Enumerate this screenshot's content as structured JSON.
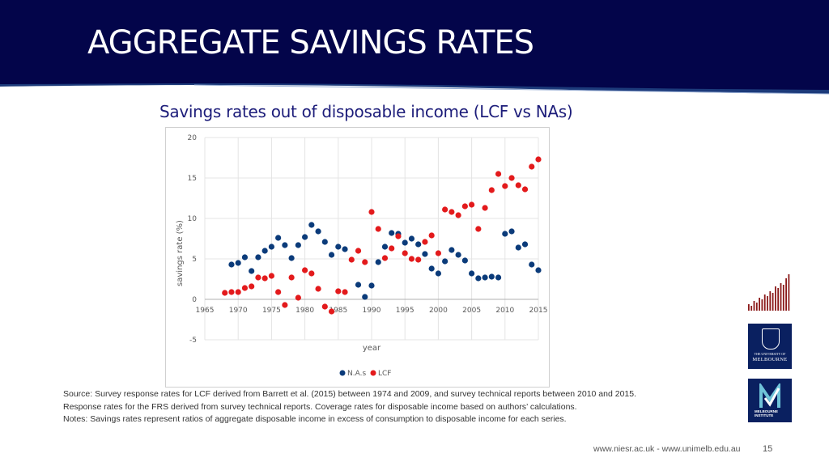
{
  "header": {
    "title": "AGGREGATE SAVINGS RATES"
  },
  "subtitle": "Savings rates out of disposable income (LCF vs NAs)",
  "chart_data": {
    "type": "scatter",
    "title": "",
    "xlabel": "year",
    "ylabel": "savings rate (%)",
    "xlim": [
      1965,
      2015
    ],
    "ylim": [
      -5,
      20
    ],
    "x_ticks": [
      1965,
      1970,
      1975,
      1980,
      1985,
      1990,
      1995,
      2000,
      2005,
      2010,
      2015
    ],
    "y_ticks": [
      -5,
      0,
      5,
      10,
      15,
      20
    ],
    "grid": true,
    "legend": "bottom",
    "series": [
      {
        "name": "N.A.s",
        "color": "#0b3b7a",
        "points": [
          [
            1969,
            4.3
          ],
          [
            1970,
            4.5
          ],
          [
            1971,
            5.2
          ],
          [
            1972,
            3.5
          ],
          [
            1973,
            5.2
          ],
          [
            1974,
            6.0
          ],
          [
            1975,
            6.5
          ],
          [
            1976,
            7.6
          ],
          [
            1977,
            6.7
          ],
          [
            1978,
            5.1
          ],
          [
            1979,
            6.7
          ],
          [
            1980,
            7.7
          ],
          [
            1981,
            9.2
          ],
          [
            1982,
            8.4
          ],
          [
            1983,
            7.1
          ],
          [
            1984,
            5.5
          ],
          [
            1985,
            6.5
          ],
          [
            1986,
            6.2
          ],
          [
            1988,
            1.8
          ],
          [
            1989,
            0.3
          ],
          [
            1990,
            1.7
          ],
          [
            1991,
            4.6
          ],
          [
            1992,
            6.5
          ],
          [
            1993,
            8.2
          ],
          [
            1994,
            8.1
          ],
          [
            1995,
            7.0
          ],
          [
            1996,
            7.5
          ],
          [
            1997,
            6.8
          ],
          [
            1998,
            5.6
          ],
          [
            1999,
            3.8
          ],
          [
            2000,
            3.2
          ],
          [
            2001,
            4.7
          ],
          [
            2002,
            6.1
          ],
          [
            2003,
            5.5
          ],
          [
            2004,
            4.8
          ],
          [
            2005,
            3.2
          ],
          [
            2006,
            2.6
          ],
          [
            2007,
            2.7
          ],
          [
            2008,
            2.8
          ],
          [
            2009,
            2.7
          ],
          [
            2010,
            8.1
          ],
          [
            2011,
            8.4
          ],
          [
            2012,
            6.4
          ],
          [
            2013,
            6.8
          ],
          [
            2014,
            4.3
          ],
          [
            2015,
            3.6
          ]
        ]
      },
      {
        "name": "LCF",
        "color": "#e31a1c",
        "points": [
          [
            1968,
            0.8
          ],
          [
            1969,
            0.9
          ],
          [
            1970,
            0.9
          ],
          [
            1971,
            1.4
          ],
          [
            1972,
            1.6
          ],
          [
            1973,
            2.7
          ],
          [
            1974,
            2.6
          ],
          [
            1975,
            2.9
          ],
          [
            1976,
            0.9
          ],
          [
            1977,
            -0.7
          ],
          [
            1978,
            2.7
          ],
          [
            1979,
            0.2
          ],
          [
            1980,
            3.6
          ],
          [
            1981,
            3.2
          ],
          [
            1982,
            1.3
          ],
          [
            1983,
            -0.9
          ],
          [
            1984,
            -1.5
          ],
          [
            1985,
            1.0
          ],
          [
            1986,
            0.9
          ],
          [
            1987,
            4.9
          ],
          [
            1988,
            6.0
          ],
          [
            1989,
            4.6
          ],
          [
            1990,
            10.8
          ],
          [
            1991,
            8.7
          ],
          [
            1992,
            5.1
          ],
          [
            1993,
            6.3
          ],
          [
            1994,
            7.8
          ],
          [
            1995,
            5.7
          ],
          [
            1996,
            5.0
          ],
          [
            1997,
            4.9
          ],
          [
            1998,
            7.1
          ],
          [
            1999,
            7.9
          ],
          [
            2000,
            5.7
          ],
          [
            2001,
            11.1
          ],
          [
            2002,
            10.8
          ],
          [
            2003,
            10.4
          ],
          [
            2004,
            11.5
          ],
          [
            2005,
            11.7
          ],
          [
            2006,
            8.7
          ],
          [
            2007,
            11.3
          ],
          [
            2008,
            13.5
          ],
          [
            2009,
            15.5
          ],
          [
            2010,
            14.0
          ],
          [
            2011,
            15.0
          ],
          [
            2012,
            14.1
          ],
          [
            2013,
            13.6
          ],
          [
            2014,
            16.4
          ],
          [
            2015,
            17.3
          ]
        ]
      }
    ]
  },
  "notes": {
    "line1": "Source:  Survey response rates for LCF derived from Barrett et al. (2015) between 1974 and 2009, and survey technical reports between 2010 and 2015.",
    "line2": "Response rates for the FRS derived from survey technical reports. Coverage rates for disposable income based on authors’ calculations.",
    "line3": "Notes:  Savings rates represent ratios of aggregate disposable income in excess of consumption to disposable income for each series."
  },
  "footer": {
    "urls": "www.niesr.ac.uk   -   www.unimelb.edu.au",
    "page": "15"
  },
  "logos": {
    "melbourne_line1": "THE UNIVERSITY OF",
    "melbourne_line2": "MELBOURNE",
    "institute_line1": "MELBOURNE",
    "institute_line2": "INSTITUTE"
  },
  "colors": {
    "header_bg": "#03054a",
    "accent": "#1d1d7a",
    "niesr": "#8b1a1a"
  }
}
